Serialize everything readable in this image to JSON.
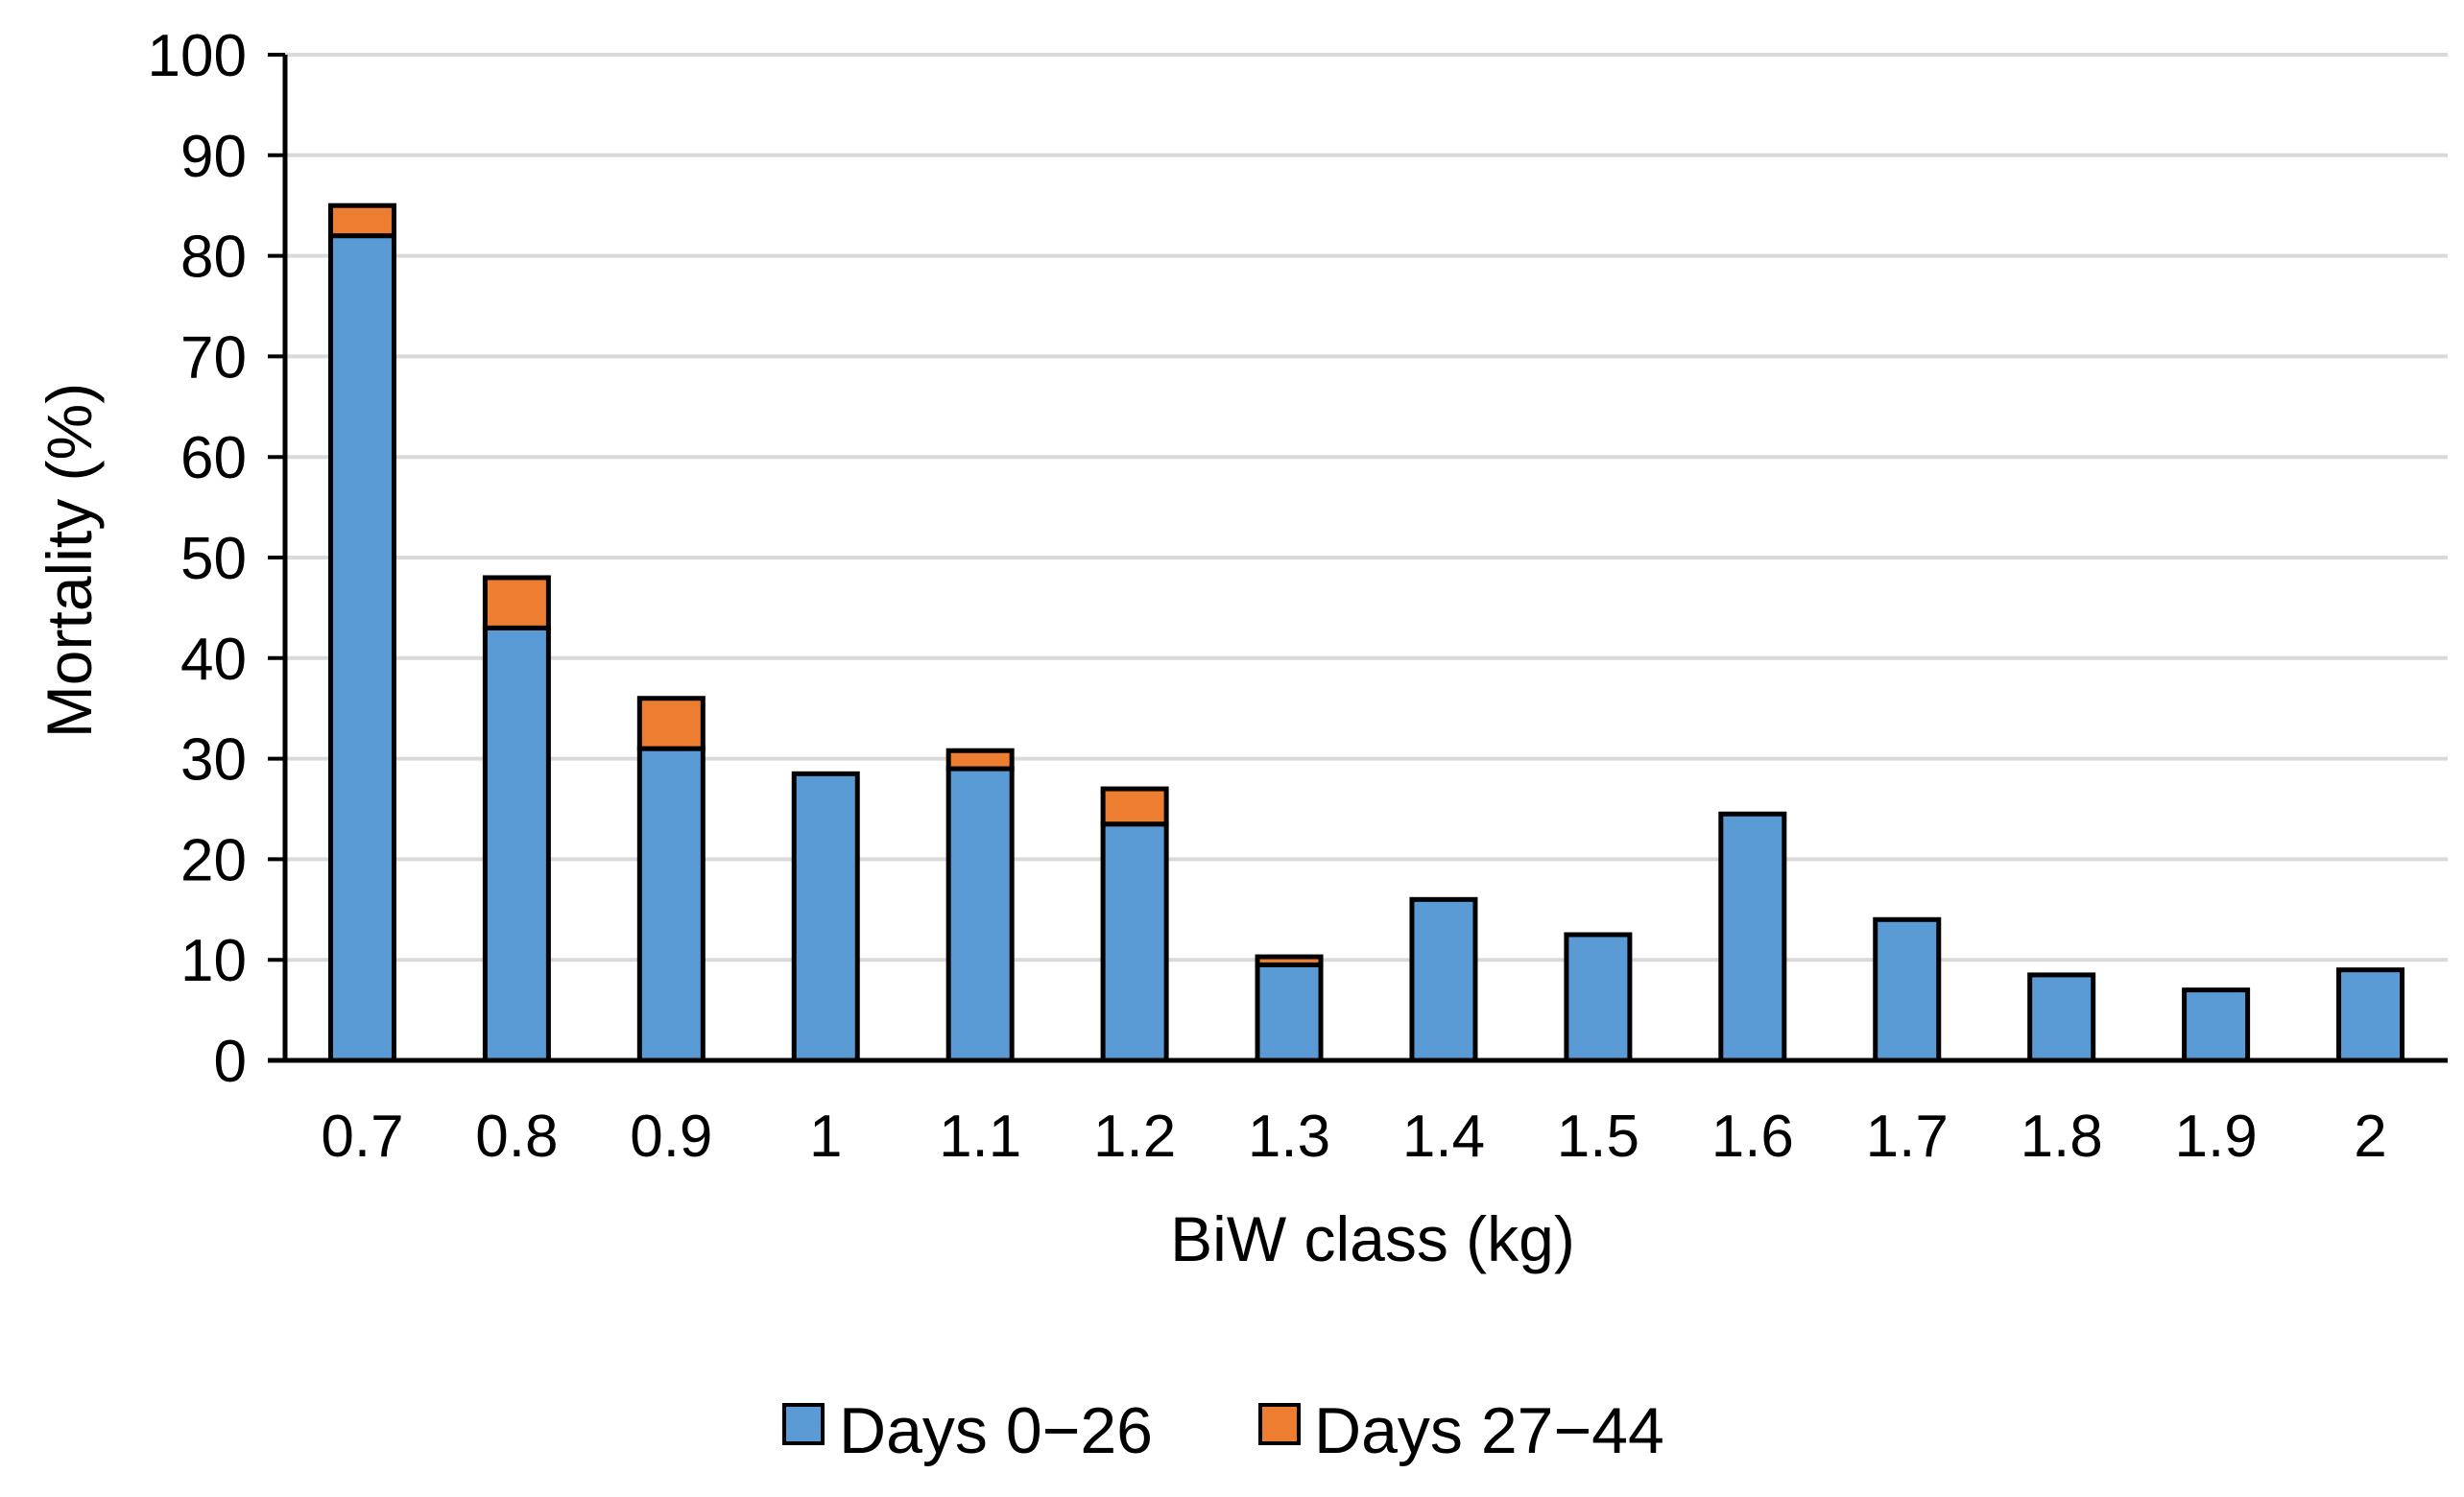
{
  "chart_data": {
    "type": "bar",
    "stacked": true,
    "title": "",
    "xlabel": "BiW class (kg)",
    "ylabel": "Mortality (%)",
    "ylim": [
      0,
      100
    ],
    "yticks": [
      "0",
      "10",
      "20",
      "30",
      "40",
      "50",
      "60",
      "70",
      "80",
      "90",
      "100"
    ],
    "grid": "horizontal",
    "legend_position": "bottom",
    "categories": [
      "0.7",
      "0.8",
      "0.9",
      "1",
      "1.1",
      "1.2",
      "1.3",
      "1.4",
      "1.5",
      "1.6",
      "1.7",
      "1.8",
      "1.9",
      "2"
    ],
    "series": [
      {
        "name": "Days 0−26",
        "color": "#5b9bd5",
        "values": [
          82,
          43,
          31,
          28.5,
          29,
          23.5,
          9.5,
          16,
          12.5,
          24.5,
          14,
          8.5,
          7,
          9
        ]
      },
      {
        "name": "Days 27−44",
        "color": "#ed7d31",
        "values": [
          3,
          5,
          5,
          0,
          1.8,
          3.5,
          0.8,
          0,
          0,
          0,
          0,
          0,
          0,
          0
        ]
      }
    ]
  }
}
